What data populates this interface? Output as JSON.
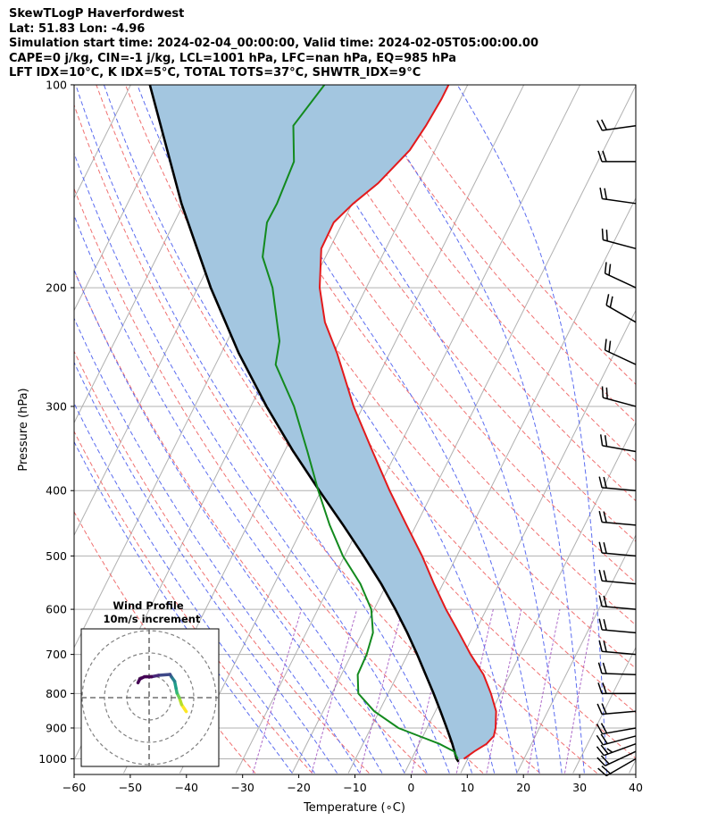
{
  "header": {
    "line1": "SkewTLogP Haverfordwest",
    "line2": "Lat: 51.83   Lon: -4.96",
    "line3": "Simulation start time: 2024-02-04_00:00:00, Valid time: 2024-02-05T05:00:00.00",
    "line4": "CAPE=0 j/kg, CIN=-1 j/kg, LCL=1001 hPa, LFC=nan hPa, EQ=985 hPa",
    "line5": "LFT IDX=10°C, K IDX=5°C, TOTAL TOTS=37°C, SHWTR_IDX=9°C"
  },
  "chart_data": {
    "type": "line",
    "title": "SkewTLogP Haverfordwest",
    "xlabel": "Temperature (∘C)",
    "ylabel": "Pressure (hPa)",
    "xlim": [
      -60,
      40
    ],
    "ylim": [
      1050,
      100
    ],
    "x_ticks": [
      -60,
      -50,
      -40,
      -30,
      -20,
      -10,
      0,
      10,
      20,
      30,
      40
    ],
    "x_tick_labels": [
      "−60",
      "−50",
      "−40",
      "−30",
      "−20",
      "−10",
      "0",
      "10",
      "20",
      "30",
      "40"
    ],
    "y_ticks": [
      1000,
      900,
      800,
      700,
      600,
      500,
      400,
      300,
      200,
      100
    ],
    "y_tick_labels": [
      "1000",
      "900",
      "800",
      "700",
      "600",
      "500",
      "400",
      "300",
      "200",
      "100"
    ],
    "colors": {
      "temperature": "#e31a1c",
      "dewpoint": "#138a1e",
      "parcel": "#000000",
      "cape_fill": "#a3c6e0",
      "dry_adiabat": "#f07070",
      "moist_adiabat": "#5b6cf0",
      "mixing_ratio": "#a050c0",
      "isotherm": "#b0b0b0"
    },
    "series": [
      {
        "name": "Temperature",
        "points": [
          {
            "p": 1000,
            "t": 9.3
          },
          {
            "p": 975,
            "t": 10.5
          },
          {
            "p": 950,
            "t": 12.0
          },
          {
            "p": 925,
            "t": 12.6
          },
          {
            "p": 900,
            "t": 12.2
          },
          {
            "p": 850,
            "t": 10.8
          },
          {
            "p": 800,
            "t": 8.3
          },
          {
            "p": 750,
            "t": 5.3
          },
          {
            "p": 700,
            "t": 1.2
          },
          {
            "p": 650,
            "t": -2.8
          },
          {
            "p": 600,
            "t": -7.2
          },
          {
            "p": 550,
            "t": -11.6
          },
          {
            "p": 500,
            "t": -16.2
          },
          {
            "p": 450,
            "t": -21.7
          },
          {
            "p": 400,
            "t": -27.8
          },
          {
            "p": 350,
            "t": -34.3
          },
          {
            "p": 300,
            "t": -41.7
          },
          {
            "p": 250,
            "t": -49.4
          },
          {
            "p": 225,
            "t": -54.3
          },
          {
            "p": 200,
            "t": -58.3
          },
          {
            "p": 175,
            "t": -61.5
          },
          {
            "p": 160,
            "t": -61.6
          },
          {
            "p": 150,
            "t": -59.8
          },
          {
            "p": 140,
            "t": -57.2
          },
          {
            "p": 125,
            "t": -54.5
          },
          {
            "p": 115,
            "t": -53.8
          },
          {
            "p": 105,
            "t": -53.4
          },
          {
            "p": 100,
            "t": -53.4
          }
        ]
      },
      {
        "name": "Dewpoint",
        "points": [
          {
            "p": 1000,
            "t": 8.2
          },
          {
            "p": 975,
            "t": 6.9
          },
          {
            "p": 950,
            "t": 3.6
          },
          {
            "p": 925,
            "t": -0.7
          },
          {
            "p": 900,
            "t": -5.1
          },
          {
            "p": 850,
            "t": -10.9
          },
          {
            "p": 800,
            "t": -15.3
          },
          {
            "p": 750,
            "t": -17.1
          },
          {
            "p": 700,
            "t": -17.3
          },
          {
            "p": 650,
            "t": -18.1
          },
          {
            "p": 600,
            "t": -20.5
          },
          {
            "p": 550,
            "t": -24.7
          },
          {
            "p": 500,
            "t": -30.3
          },
          {
            "p": 450,
            "t": -35.4
          },
          {
            "p": 400,
            "t": -40.5
          },
          {
            "p": 350,
            "t": -45.9
          },
          {
            "p": 300,
            "t": -52.3
          },
          {
            "p": 260,
            "t": -59.3
          },
          {
            "p": 240,
            "t": -60.7
          },
          {
            "p": 200,
            "t": -66.7
          },
          {
            "p": 180,
            "t": -71.2
          },
          {
            "p": 160,
            "t": -73.5
          },
          {
            "p": 150,
            "t": -73.4
          },
          {
            "p": 130,
            "t": -74.1
          },
          {
            "p": 115,
            "t": -77.4
          },
          {
            "p": 100,
            "t": -75.5
          }
        ]
      },
      {
        "name": "Parcel",
        "points": [
          {
            "p": 1010,
            "t": 8.6
          },
          {
            "p": 1000,
            "t": 8.0
          },
          {
            "p": 950,
            "t": 5.9
          },
          {
            "p": 900,
            "t": 3.5
          },
          {
            "p": 850,
            "t": 0.9
          },
          {
            "p": 800,
            "t": -1.9
          },
          {
            "p": 750,
            "t": -5.0
          },
          {
            "p": 700,
            "t": -8.3
          },
          {
            "p": 650,
            "t": -12.0
          },
          {
            "p": 600,
            "t": -16.2
          },
          {
            "p": 550,
            "t": -21.0
          },
          {
            "p": 500,
            "t": -26.6
          },
          {
            "p": 450,
            "t": -33.0
          },
          {
            "p": 400,
            "t": -40.3
          },
          {
            "p": 350,
            "t": -48.4
          },
          {
            "p": 300,
            "t": -57.2
          },
          {
            "p": 250,
            "t": -66.9
          },
          {
            "p": 200,
            "t": -77.7
          },
          {
            "p": 150,
            "t": -90.4
          },
          {
            "p": 100,
            "t": -106.6
          }
        ]
      }
    ],
    "wind_barbs": {
      "note": "direction in degrees, speed in knots",
      "levels": [
        {
          "p": 1000,
          "dir": 240,
          "spd": 22
        },
        {
          "p": 975,
          "dir": 245,
          "spd": 24
        },
        {
          "p": 950,
          "dir": 250,
          "spd": 25
        },
        {
          "p": 925,
          "dir": 255,
          "spd": 24
        },
        {
          "p": 900,
          "dir": 260,
          "spd": 23
        },
        {
          "p": 850,
          "dir": 265,
          "spd": 22
        },
        {
          "p": 800,
          "dir": 270,
          "spd": 22
        },
        {
          "p": 750,
          "dir": 272,
          "spd": 22
        },
        {
          "p": 700,
          "dir": 275,
          "spd": 22
        },
        {
          "p": 650,
          "dir": 275,
          "spd": 22
        },
        {
          "p": 600,
          "dir": 275,
          "spd": 22
        },
        {
          "p": 550,
          "dir": 275,
          "spd": 22
        },
        {
          "p": 500,
          "dir": 275,
          "spd": 22
        },
        {
          "p": 450,
          "dir": 275,
          "spd": 22
        },
        {
          "p": 400,
          "dir": 275,
          "spd": 22
        },
        {
          "p": 350,
          "dir": 280,
          "spd": 22
        },
        {
          "p": 300,
          "dir": 285,
          "spd": 22
        },
        {
          "p": 260,
          "dir": 295,
          "spd": 22
        },
        {
          "p": 225,
          "dir": 300,
          "spd": 22
        },
        {
          "p": 200,
          "dir": 295,
          "spd": 22
        },
        {
          "p": 175,
          "dir": 285,
          "spd": 22
        },
        {
          "p": 150,
          "dir": 278,
          "spd": 22
        },
        {
          "p": 130,
          "dir": 270,
          "spd": 22
        },
        {
          "p": 115,
          "dir": 262,
          "spd": 22
        }
      ]
    },
    "hodograph": {
      "title": "Wind Profile",
      "subtitle": "10m/s increment",
      "ring_step_ms": 10,
      "rings": 3,
      "points": [
        {
          "u": 8.0,
          "v": -3.0
        },
        {
          "u": 7.0,
          "v": -1.5
        },
        {
          "u": 6.5,
          "v": 0.0
        },
        {
          "u": 6.0,
          "v": 1.0
        },
        {
          "u": 5.8,
          "v": 2.0
        },
        {
          "u": 5.5,
          "v": 3.5
        },
        {
          "u": 4.8,
          "v": 4.5
        },
        {
          "u": 4.5,
          "v": 5.0
        },
        {
          "u": 2.0,
          "v": 4.8
        },
        {
          "u": 0.5,
          "v": 4.5
        },
        {
          "u": -1.0,
          "v": 4.5
        },
        {
          "u": -2.0,
          "v": 4.0
        },
        {
          "u": -2.4,
          "v": 3.2
        }
      ]
    }
  }
}
